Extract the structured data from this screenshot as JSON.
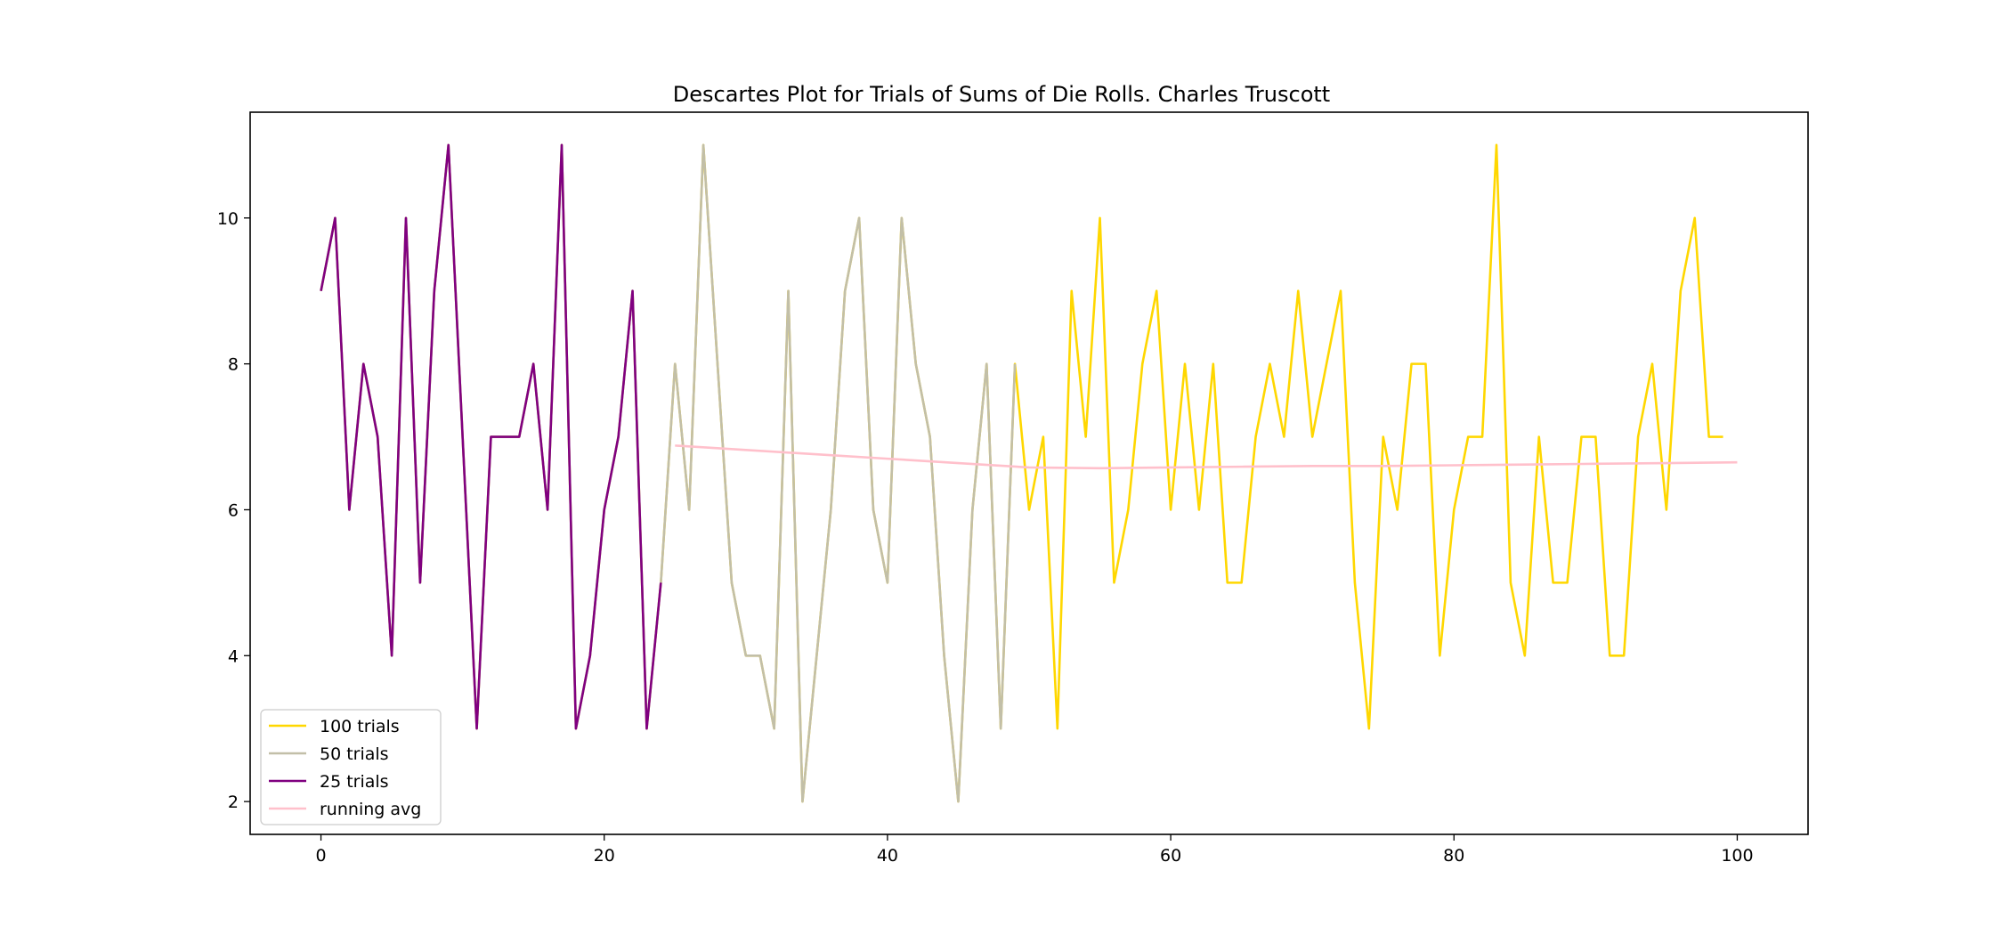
{
  "chart_data": {
    "type": "line",
    "title": "Descartes Plot for Trials of Sums of Die Rolls. Charles Truscott",
    "xlabel": "",
    "ylabel": "",
    "xlim": [
      -5,
      105
    ],
    "ylim": [
      1.55,
      11.45
    ],
    "xticks": [
      0,
      20,
      40,
      60,
      80,
      100
    ],
    "yticks": [
      2,
      4,
      6,
      8,
      10
    ],
    "grid": false,
    "legend_position": "lower-left",
    "series": [
      {
        "name": "100 trials",
        "color": "#ffd700",
        "x_start": 0,
        "values": [
          9,
          10,
          6,
          8,
          7,
          4,
          10,
          5,
          9,
          11,
          7,
          3,
          7,
          7,
          7,
          8,
          6,
          11,
          3,
          4,
          6,
          7,
          9,
          3,
          5,
          8,
          6,
          11,
          8,
          5,
          4,
          4,
          3,
          9,
          2,
          4,
          6,
          9,
          10,
          6,
          5,
          10,
          8,
          7,
          4,
          2,
          6,
          8,
          3,
          8,
          6,
          7,
          3,
          9,
          7,
          10,
          5,
          6,
          8,
          9,
          6,
          8,
          6,
          8,
          5,
          5,
          7,
          8,
          7,
          9,
          7,
          8,
          9,
          5,
          3,
          7,
          6,
          8,
          8,
          4,
          6,
          7,
          7,
          11,
          5,
          4,
          7,
          5,
          5,
          7,
          7,
          4,
          4,
          7,
          8,
          6,
          9,
          10,
          7,
          7
        ]
      },
      {
        "name": "50 trials",
        "color": "#c2bfa8",
        "x_start": 0,
        "values": [
          9,
          10,
          6,
          8,
          7,
          4,
          10,
          5,
          9,
          11,
          7,
          3,
          7,
          7,
          7,
          8,
          6,
          11,
          3,
          4,
          6,
          7,
          9,
          3,
          5,
          8,
          6,
          11,
          8,
          5,
          4,
          4,
          3,
          9,
          2,
          4,
          6,
          9,
          10,
          6,
          5,
          10,
          8,
          7,
          4,
          2,
          6,
          8,
          3,
          8
        ]
      },
      {
        "name": "25 trials",
        "color": "#800080",
        "x_start": 0,
        "values": [
          9,
          10,
          6,
          8,
          7,
          4,
          10,
          5,
          9,
          11,
          7,
          3,
          7,
          7,
          7,
          8,
          6,
          11,
          3,
          4,
          6,
          7,
          9,
          3,
          5
        ]
      },
      {
        "name": "running avg",
        "color": "#ffc0cb",
        "x": [
          25,
          30,
          35,
          40,
          45,
          50,
          55,
          60,
          65,
          70,
          75,
          80,
          85,
          90,
          95,
          100
        ],
        "values": [
          6.88,
          6.82,
          6.76,
          6.7,
          6.64,
          6.58,
          6.57,
          6.58,
          6.59,
          6.6,
          6.6,
          6.61,
          6.62,
          6.63,
          6.64,
          6.65
        ]
      }
    ]
  }
}
